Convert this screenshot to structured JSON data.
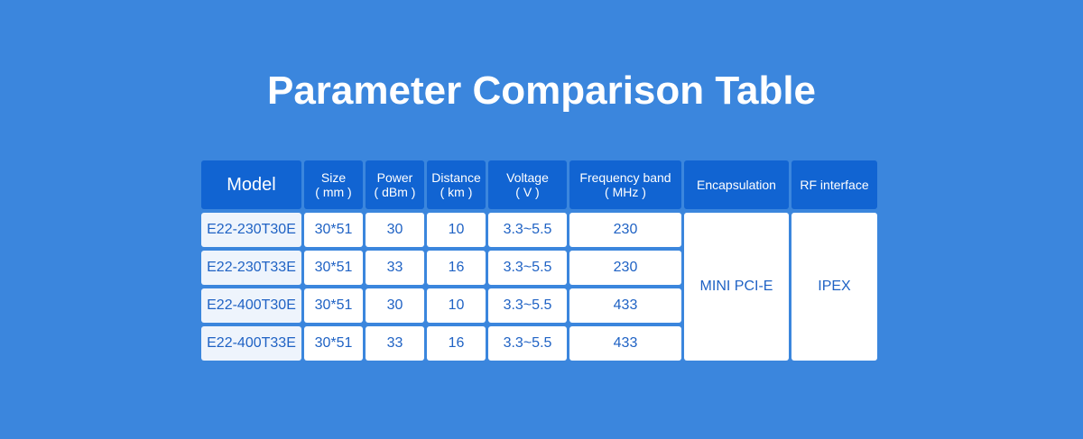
{
  "title": "Parameter Comparison Table",
  "table": {
    "headers": [
      {
        "name": "Model"
      },
      {
        "name": "Size",
        "unit": "( mm )"
      },
      {
        "name": "Power",
        "unit": "( dBm )"
      },
      {
        "name": "Distance",
        "unit": "( km )"
      },
      {
        "name": "Voltage",
        "unit": "( V )"
      },
      {
        "name": "Frequency band",
        "unit": "( MHz )"
      },
      {
        "name": "Encapsulation"
      },
      {
        "name": "RF interface"
      }
    ],
    "rows": [
      [
        "E22-230T30E",
        "30*51",
        30,
        10,
        "3.3~5.5",
        230
      ],
      [
        "E22-230T33E",
        "30*51",
        33,
        16,
        "3.3~5.5",
        230
      ],
      [
        "E22-400T30E",
        "30*51",
        30,
        10,
        "3.3~5.5",
        433
      ],
      [
        "E22-400T33E",
        "30*51",
        33,
        16,
        "3.3~5.5",
        433
      ]
    ],
    "encapsulation": "MINI PCI-E",
    "rf_interface": "IPEX"
  }
}
